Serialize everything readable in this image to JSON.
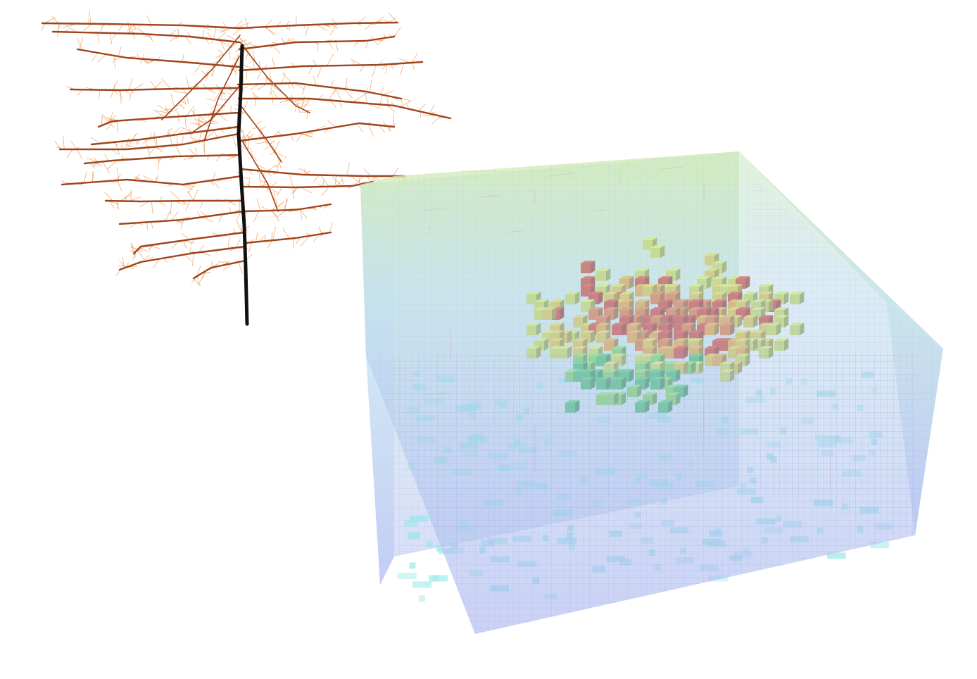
{
  "figure": {
    "panels": [
      {
        "id": "root-architecture",
        "description_label": ""
      },
      {
        "id": "voxel-soil-volume",
        "description_label": ""
      }
    ],
    "root": {
      "taproot_color": "#111111",
      "lateral_color": "#a0441c",
      "hair_color": "#f0a060"
    },
    "soil": {
      "top_tint": "#d6ecb0",
      "body_tint": "#b9c6f4",
      "grid_color": "#9a9ce0",
      "bright_cell_color": "#8fe8e6"
    },
    "uptake_colors": [
      "#d32e1e",
      "#e8692a",
      "#ee9a2e",
      "#e3c23a",
      "#cfd94a",
      "#77d24d",
      "#39b85a"
    ]
  }
}
